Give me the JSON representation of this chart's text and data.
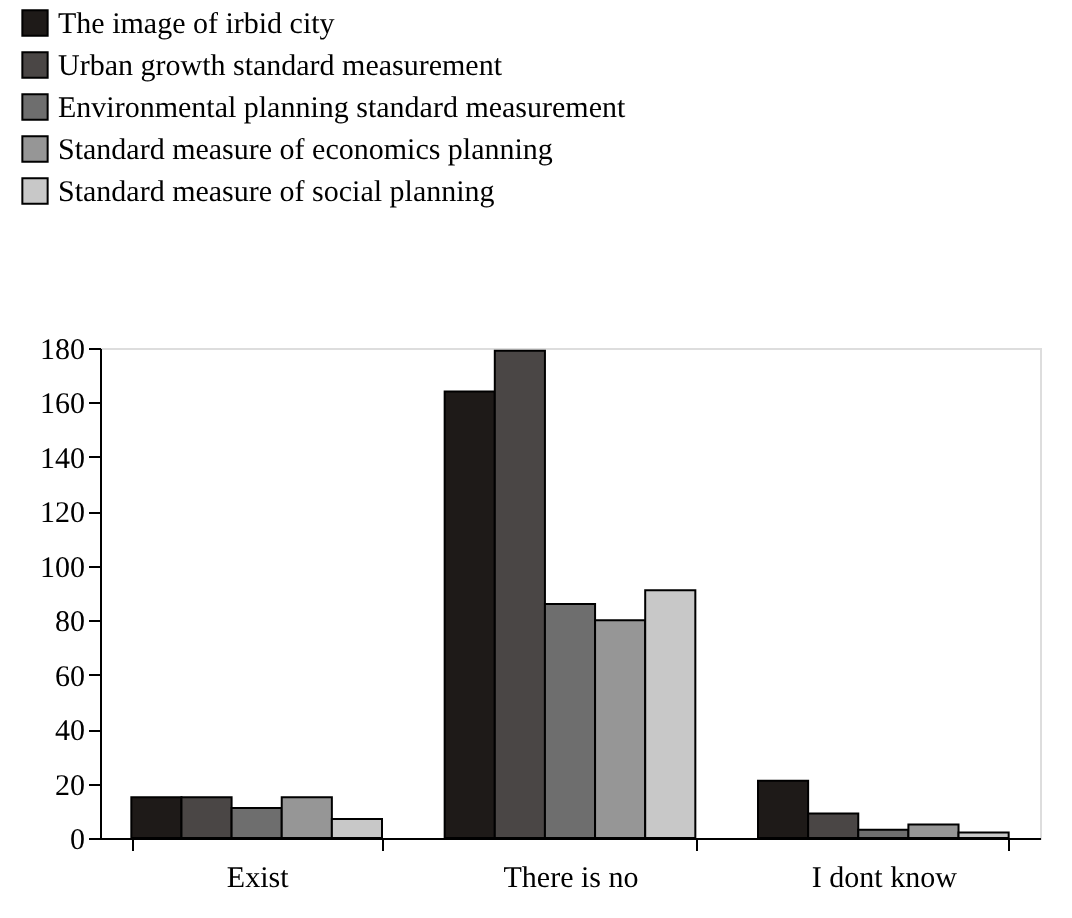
{
  "chart_data": {
    "type": "bar",
    "categories": [
      "Exist",
      "There is no",
      "I dont know"
    ],
    "series": [
      {
        "name": "The image of irbid city",
        "color": "#1e1a18",
        "values": [
          15,
          164,
          21
        ]
      },
      {
        "name": "Urban growth standard measurement",
        "color": "#4a4645",
        "values": [
          15,
          179,
          9
        ]
      },
      {
        "name": "Environmental planning standard measurement",
        "color": "#6e6e6e",
        "values": [
          11,
          86,
          3
        ]
      },
      {
        "name": "Standard measure of economics planning",
        "color": "#969696",
        "values": [
          15,
          80,
          5
        ]
      },
      {
        "name": "Standard measure of social planning",
        "color": "#c8c8c8",
        "values": [
          7,
          91,
          2
        ]
      }
    ],
    "ylim": [
      0,
      180
    ],
    "yticks": [
      0,
      20,
      40,
      60,
      80,
      100,
      120,
      140,
      160,
      180
    ],
    "grid": false,
    "legend": "top"
  }
}
